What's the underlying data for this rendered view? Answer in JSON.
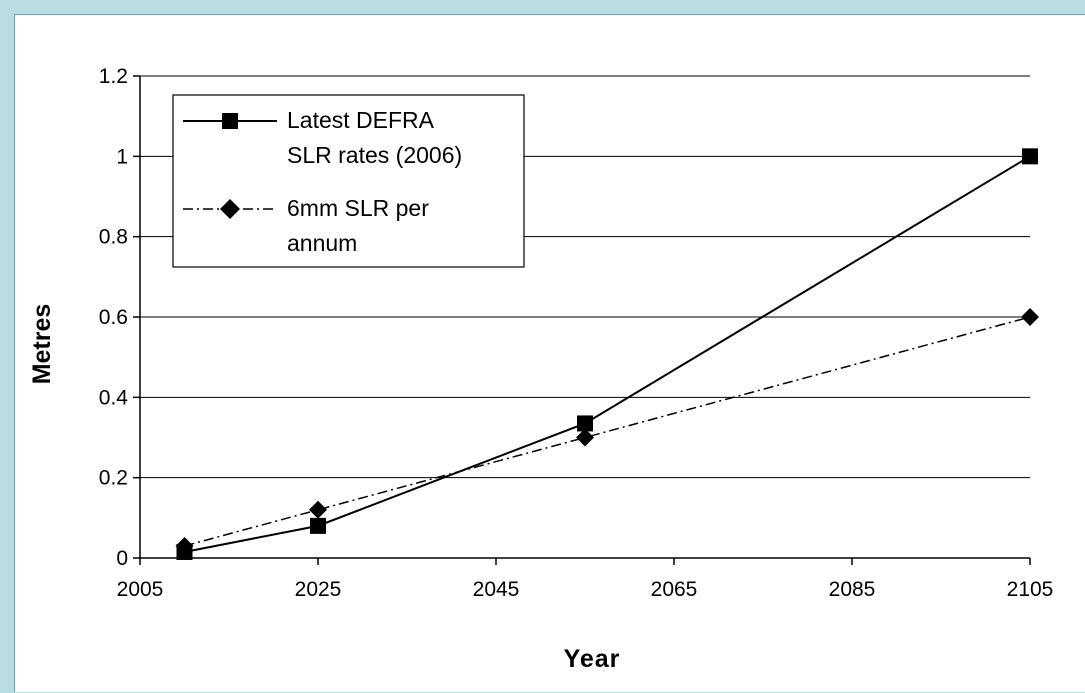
{
  "chart_data": {
    "type": "line",
    "title": "",
    "xlabel": "Year",
    "ylabel": "Metres",
    "xlim": [
      2005,
      2105
    ],
    "ylim": [
      0,
      1.2
    ],
    "x_ticks": [
      "2005",
      "2025",
      "2045",
      "2065",
      "2085",
      "2105"
    ],
    "x_tick_values": [
      2005,
      2025,
      2045,
      2065,
      2085,
      2105
    ],
    "y_ticks": [
      "0",
      "0.2",
      "0.4",
      "0.6",
      "0.8",
      "1",
      "1.2"
    ],
    "y_tick_values": [
      0,
      0.2,
      0.4,
      0.6,
      0.8,
      1.0,
      1.2
    ],
    "grid": "horizontal",
    "legend_position": "top-left",
    "series": [
      {
        "name_lines": [
          "Latest DEFRA",
          "SLR rates (2006)"
        ],
        "line_style": "solid",
        "marker": "square",
        "color": "#000000",
        "x": [
          2010,
          2025,
          2055,
          2105
        ],
        "y": [
          0.015,
          0.08,
          0.335,
          1.0
        ]
      },
      {
        "name_lines": [
          "6mm SLR per",
          "annum"
        ],
        "line_style": "dash-dot",
        "marker": "diamond",
        "color": "#000000",
        "x": [
          2010,
          2025,
          2055,
          2105
        ],
        "y": [
          0.03,
          0.12,
          0.3,
          0.6
        ]
      }
    ]
  }
}
